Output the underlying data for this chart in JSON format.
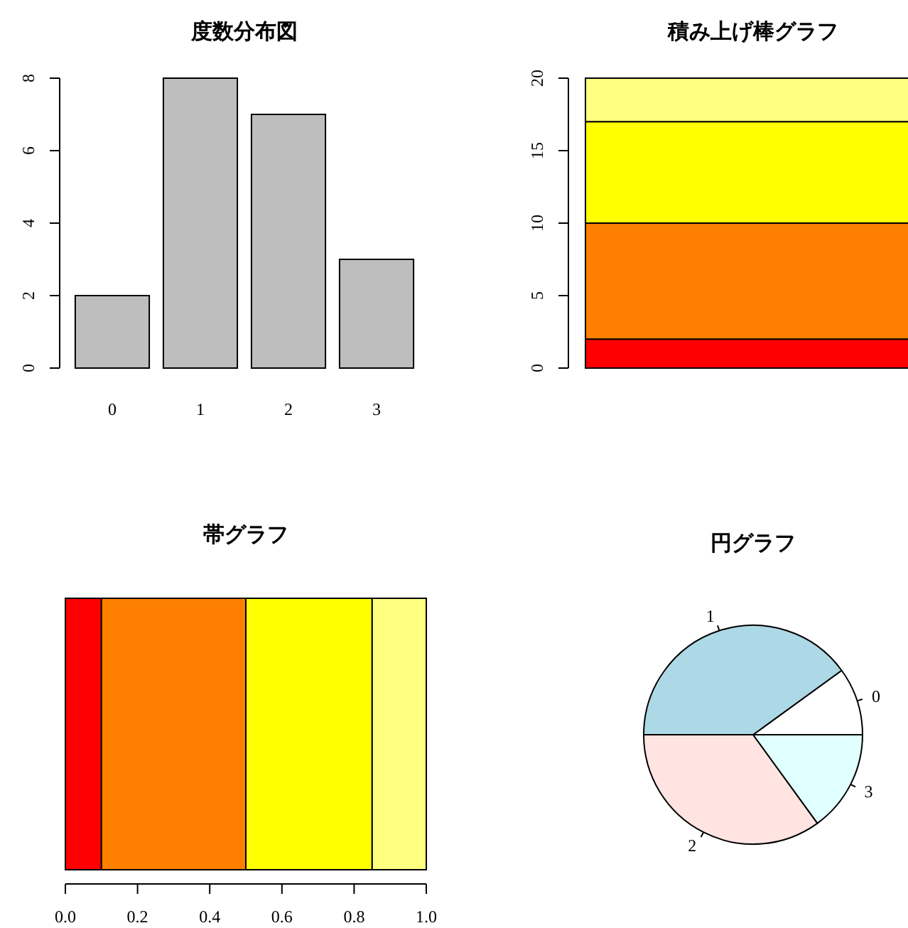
{
  "chart_data": [
    {
      "type": "bar",
      "title": "度数分布図",
      "categories": [
        "0",
        "1",
        "2",
        "3"
      ],
      "values": [
        2,
        8,
        7,
        3
      ],
      "color": "#bebebe",
      "ylim": [
        0,
        8
      ],
      "yticks": [
        0,
        2,
        4,
        6,
        8
      ]
    },
    {
      "type": "bar",
      "title": "積み上げ棒グラフ",
      "stacked": true,
      "categories": [
        null
      ],
      "ylim": [
        0,
        20
      ],
      "yticks": [
        0,
        5,
        10,
        15,
        20
      ],
      "series": [
        {
          "color": "#ff0000",
          "values": [
            2
          ]
        },
        {
          "color": "#ff8000",
          "values": [
            8
          ]
        },
        {
          "color": "#ffff00",
          "values": [
            7
          ]
        },
        {
          "color": "#ffff80",
          "values": [
            3
          ]
        }
      ]
    },
    {
      "type": "bar",
      "title": "帯グラフ",
      "stacked": true,
      "orientation": "horizontal",
      "categories": [
        null
      ],
      "xlim": [
        0,
        1
      ],
      "xticks": [
        {
          "value": 0,
          "label": "0.0"
        },
        {
          "value": 0.2,
          "label": "0.2"
        },
        {
          "value": 0.4,
          "label": "0.4"
        },
        {
          "value": 0.6,
          "label": "0.6"
        },
        {
          "value": 0.8,
          "label": "0.8"
        },
        {
          "value": 1,
          "label": "1.0"
        }
      ],
      "series": [
        {
          "color": "#ff0000",
          "values": [
            0.1
          ]
        },
        {
          "color": "#ff8000",
          "values": [
            0.4
          ]
        },
        {
          "color": "#ffff00",
          "values": [
            0.35
          ]
        },
        {
          "color": "#ffff80",
          "values": [
            0.15
          ]
        }
      ]
    },
    {
      "type": "pie",
      "title": "円グラフ",
      "categories": [
        "0",
        "1",
        "2",
        "3"
      ],
      "values": [
        10,
        40,
        35,
        15
      ],
      "colors": [
        "#ffffff",
        "#add8e6",
        "#ffe4e1",
        "#e0ffff"
      ]
    }
  ]
}
